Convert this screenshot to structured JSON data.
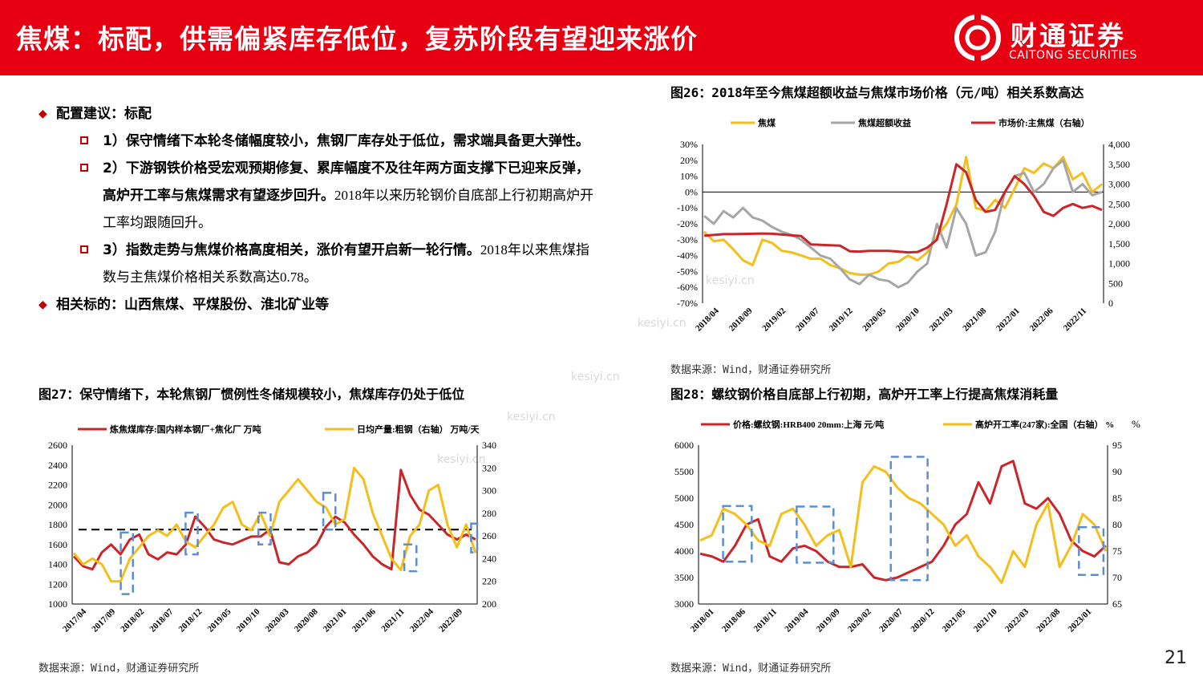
{
  "header": {
    "title": "焦煤：标配，供需偏紧库存低位，复苏阶段有望迎来涨价",
    "logo_cn": "财通证券",
    "logo_en": "CAITONG SECURITIES"
  },
  "bullets": {
    "b1": "配置建议：标配",
    "s1": "1）保守情绪下本轮冬储幅度较小，焦钢厂库存处于低位，需求端具备更大弹性。",
    "s2_bold_a": "2）下游钢铁价格受宏观预期修复、累库幅度不及往年两方面支撑下已迎来反弹，",
    "s2_bold_b": "高炉开工率与焦煤需求有望逐步回升。",
    "s2_normal_a": "2018年以来历轮钢价自底部上行初期高炉开",
    "s2_normal_b": "工率均跟随回升。",
    "s3_bold": "3）指数走势与焦煤价格高度相关，涨价有望开启新一轮行情。",
    "s3_normal_a": "2018年以来焦煤指",
    "s3_normal_b": "数与主焦煤价格相关系数高达0.78。",
    "b2": "相关标的：山西焦煤、平煤股份、淮北矿业等"
  },
  "watermark": "kesiyi.cn",
  "page_number": "21",
  "colors": {
    "red": "#c9262b",
    "yellow": "#f5be1a",
    "gray": "#a6a6a6",
    "blue": "#5b8fd0",
    "brand": "#e60012"
  },
  "chart_data": [
    {
      "id": "fig26",
      "type": "line",
      "title": "图26：2018年至今焦煤超额收益与焦煤市场价格（元/吨）相关系数高达",
      "source": "数据来源：Wind，财通证券研究所",
      "x_ticks": [
        "2018/04",
        "2018/09",
        "2019/02",
        "2019/07",
        "2019/12",
        "2020/05",
        "2020/10",
        "2021/03",
        "2021/08",
        "2022/01",
        "2022/06",
        "2022/11"
      ],
      "ylim_left": [
        -70,
        30
      ],
      "y_ticks_left": [
        "30%",
        "20%",
        "10%",
        "0%",
        "-10%",
        "-20%",
        "-30%",
        "-40%",
        "-50%",
        "-60%",
        "-70%"
      ],
      "ylim_right": [
        0,
        4000
      ],
      "y_ticks_right": [
        "4,000",
        "3,500",
        "3,000",
        "2,500",
        "2,000",
        "1,500",
        "1,000",
        "500",
        "0"
      ],
      "series": [
        {
          "name": "焦煤",
          "axis": "left",
          "color": "yellow",
          "values": [
            -25,
            -31,
            -30,
            -36,
            -43,
            -46,
            -30,
            -32,
            -37,
            -38,
            -40,
            -42,
            -42,
            -46,
            -48,
            -51,
            -52,
            -52,
            -50,
            -45,
            -44,
            -40,
            -43,
            -38,
            -28,
            -20,
            -8,
            22,
            -10,
            -12,
            -5,
            -10,
            2,
            15,
            12,
            18,
            15,
            22,
            8,
            12,
            0,
            5
          ]
        },
        {
          "name": "焦煤超额收益",
          "axis": "left",
          "color": "gray",
          "values": [
            -15,
            -20,
            -12,
            -16,
            -10,
            -16,
            -18,
            -22,
            -25,
            -27,
            -30,
            -35,
            -40,
            -42,
            -48,
            -55,
            -58,
            -52,
            -55,
            -56,
            -60,
            -57,
            -50,
            -45,
            -20,
            -35,
            -10,
            -20,
            -40,
            -38,
            -25,
            0,
            10,
            12,
            0,
            5,
            15,
            20,
            0,
            5,
            -2,
            0
          ]
        },
        {
          "name": "市场价:主焦煤（右轴）",
          "axis": "right",
          "color": "red",
          "values": [
            1700,
            1720,
            1740,
            1740,
            1745,
            1750,
            1755,
            1750,
            1730,
            1710,
            1690,
            1480,
            1470,
            1460,
            1450,
            1310,
            1300,
            1320,
            1320,
            1320,
            1300,
            1280,
            1290,
            1400,
            1600,
            2500,
            3500,
            3300,
            2600,
            2300,
            2350,
            2800,
            3200,
            3000,
            2700,
            2300,
            2200,
            2400,
            2500,
            2400,
            2450,
            2350
          ]
        }
      ]
    },
    {
      "id": "fig27",
      "type": "line",
      "title": "图27：保守情绪下，本轮焦钢厂惯例性冬储规模较小，焦煤库存仍处于低位",
      "source": "数据来源：Wind，财通证券研究所",
      "x_ticks": [
        "2017/04",
        "2017/09",
        "2018/02",
        "2018/07",
        "2018/12",
        "2019/05",
        "2019/10",
        "2020/03",
        "2020/08",
        "2021/01",
        "2021/06",
        "2021/11",
        "2022/04",
        "2022/09"
      ],
      "ylim_left": [
        1000,
        2600
      ],
      "y_ticks_left": [
        "2600",
        "2400",
        "2200",
        "2000",
        "1800",
        "1600",
        "1400",
        "1200",
        "1000"
      ],
      "ylim_right": [
        200,
        340
      ],
      "y_ticks_right": [
        "340",
        "320",
        "300",
        "280",
        "260",
        "240",
        "220",
        "200"
      ],
      "reference_line": 1750,
      "series": [
        {
          "name": "炼焦煤库存:国内样本钢厂+焦化厂 万吨",
          "axis": "left",
          "color": "red",
          "values": [
            1480,
            1380,
            1350,
            1520,
            1600,
            1500,
            1650,
            1700,
            1500,
            1450,
            1520,
            1500,
            1600,
            1880,
            1780,
            1650,
            1620,
            1600,
            1640,
            1680,
            1680,
            1750,
            1420,
            1400,
            1480,
            1520,
            1600,
            1780,
            1880,
            1820,
            1700,
            1600,
            1480,
            1400,
            1350,
            2350,
            2100,
            1950,
            1900,
            1800,
            1700,
            1650,
            1700,
            1650
          ]
        },
        {
          "name": "日均产量:粗钢（右轴） 万吨/天",
          "axis": "right",
          "color": "yellow",
          "values": [
            245,
            235,
            240,
            235,
            220,
            220,
            240,
            250,
            260,
            265,
            260,
            270,
            255,
            250,
            260,
            270,
            285,
            290,
            270,
            265,
            280,
            260,
            290,
            300,
            310,
            300,
            290,
            285,
            270,
            275,
            320,
            310,
            280,
            260,
            240,
            230,
            260,
            270,
            300,
            305,
            270,
            250,
            270,
            245
          ]
        }
      ],
      "boxes": [
        {
          "from": 0.12,
          "to": 0.15,
          "ylo": 1100,
          "yhi": 1720
        },
        {
          "from": 0.28,
          "to": 0.31,
          "ylo": 1500,
          "yhi": 1920
        },
        {
          "from": 0.46,
          "to": 0.49,
          "ylo": 1600,
          "yhi": 1920
        },
        {
          "from": 0.62,
          "to": 0.65,
          "ylo": 1750,
          "yhi": 2120
        },
        {
          "from": 0.82,
          "to": 0.85,
          "ylo": 1330,
          "yhi": 1600
        },
        {
          "from": 0.985,
          "to": 1.0,
          "ylo": 1520,
          "yhi": 1810
        }
      ]
    },
    {
      "id": "fig28",
      "type": "line",
      "title": "图28：螺纹钢价格自底部上行初期，高炉开工率上行提高焦煤消耗量",
      "source": "数据来源：Wind，财通证券研究所",
      "x_ticks": [
        "2018/01",
        "2018/06",
        "2018/11",
        "2019/04",
        "2019/09",
        "2020/02",
        "2020/07",
        "2020/12",
        "2021/05",
        "2021/10",
        "2022/03",
        "2022/08",
        "2023/01"
      ],
      "ylim_left": [
        3000,
        6000
      ],
      "y_ticks_left": [
        "6000",
        "5500",
        "5000",
        "4500",
        "4000",
        "3500",
        "3000"
      ],
      "ylim_right": [
        65,
        95
      ],
      "y_ticks_right": [
        "95",
        "90",
        "85",
        "80",
        "75",
        "70",
        "65"
      ],
      "series": [
        {
          "name": "价格:螺纹钢:HRB400 20mm:上海 元/吨",
          "axis": "left",
          "color": "red",
          "values": [
            3950,
            3900,
            3800,
            4100,
            4500,
            4600,
            3900,
            3800,
            4050,
            4100,
            4000,
            3800,
            3700,
            3700,
            3750,
            3500,
            3450,
            3500,
            3600,
            3700,
            3800,
            4100,
            4500,
            4700,
            5300,
            4900,
            5600,
            5700,
            4900,
            4800,
            5000,
            4700,
            4200,
            4000,
            3900,
            4100
          ]
        },
        {
          "name": "高炉开工率(247家):全国（右轴） %",
          "axis": "right",
          "color": "yellow",
          "values": [
            77,
            78,
            83,
            82,
            80,
            77,
            76,
            82,
            83,
            80,
            76,
            78,
            79,
            72,
            88,
            91,
            90,
            87,
            85,
            84,
            82,
            80,
            76,
            78,
            74,
            72,
            69,
            75,
            72,
            80,
            84,
            72,
            76,
            82,
            80,
            75
          ]
        }
      ],
      "boxes": [
        {
          "from": 0.06,
          "to": 0.13,
          "ylo": 3800,
          "yhi": 4850
        },
        {
          "from": 0.24,
          "to": 0.33,
          "ylo": 3780,
          "yhi": 4840
        },
        {
          "from": 0.47,
          "to": 0.56,
          "ylo": 3450,
          "yhi": 5780
        },
        {
          "from": 0.93,
          "to": 0.99,
          "ylo": 3550,
          "yhi": 4450
        }
      ]
    }
  ]
}
